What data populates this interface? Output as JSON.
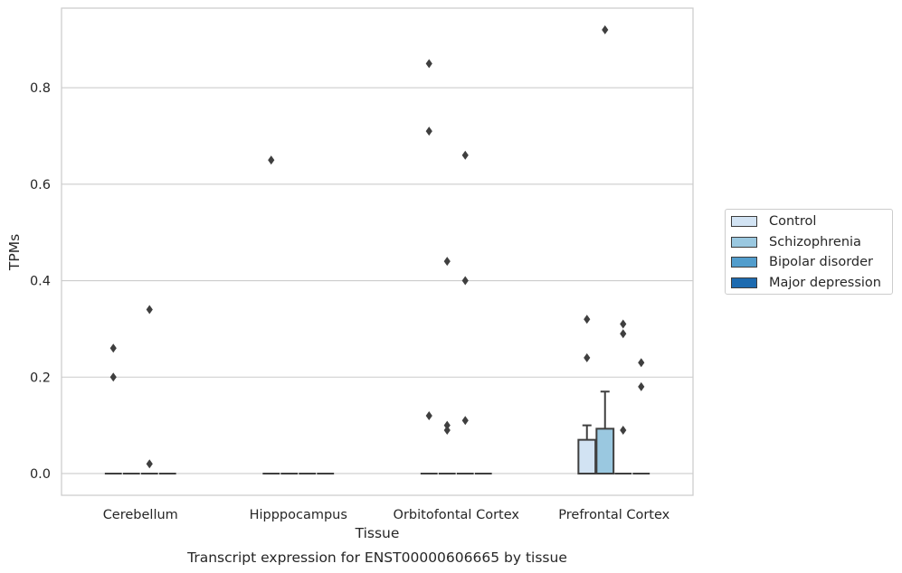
{
  "chart_data": {
    "type": "box",
    "title": "Transcript expression for ENST00000606665 by tissue",
    "xlabel": "Tissue",
    "ylabel": "TPMs",
    "ylim": [
      -0.045,
      0.965
    ],
    "yticks": [
      0.0,
      0.2,
      0.4,
      0.6,
      0.8
    ],
    "ytick_labels": [
      "0.0",
      "0.2",
      "0.4",
      "0.6",
      "0.8"
    ],
    "grid": true,
    "legend_position": "right",
    "categories": [
      "Cerebellum",
      "Hipppocampus",
      "Orbitofontal Cortex",
      "Prefrontal Cortex"
    ],
    "series": [
      {
        "name": "Control",
        "color": "#d2e3f3",
        "boxes": [
          {
            "q1": 0,
            "median": 0,
            "q3": 0,
            "whisker_low": 0,
            "whisker_high": 0,
            "outliers": [
              0.26,
              0.2
            ]
          },
          {
            "q1": 0,
            "median": 0,
            "q3": 0,
            "whisker_low": 0,
            "whisker_high": 0,
            "outliers": [
              0.65
            ]
          },
          {
            "q1": 0,
            "median": 0,
            "q3": 0,
            "whisker_low": 0,
            "whisker_high": 0,
            "outliers": [
              0.85,
              0.71,
              0.12
            ]
          },
          {
            "q1": 0,
            "median": 0,
            "q3": 0.07,
            "whisker_low": 0,
            "whisker_high": 0.1,
            "outliers": [
              0.32,
              0.24
            ]
          }
        ]
      },
      {
        "name": "Schizophrenia",
        "color": "#9ac8e0",
        "boxes": [
          {
            "q1": 0,
            "median": 0,
            "q3": 0,
            "whisker_low": 0,
            "whisker_high": 0,
            "outliers": []
          },
          {
            "q1": 0,
            "median": 0,
            "q3": 0,
            "whisker_low": 0,
            "whisker_high": 0,
            "outliers": []
          },
          {
            "q1": 0,
            "median": 0,
            "q3": 0,
            "whisker_low": 0,
            "whisker_high": 0,
            "outliers": [
              0.44,
              0.1,
              0.09
            ]
          },
          {
            "q1": 0,
            "median": 0,
            "q3": 0.093,
            "whisker_low": 0,
            "whisker_high": 0.17,
            "outliers": [
              0.92
            ]
          }
        ]
      },
      {
        "name": "Bipolar disorder",
        "color": "#529dcc",
        "boxes": [
          {
            "q1": 0,
            "median": 0,
            "q3": 0,
            "whisker_low": 0,
            "whisker_high": 0,
            "outliers": [
              0.34,
              0.02
            ]
          },
          {
            "q1": 0,
            "median": 0,
            "q3": 0,
            "whisker_low": 0,
            "whisker_high": 0,
            "outliers": []
          },
          {
            "q1": 0,
            "median": 0,
            "q3": 0,
            "whisker_low": 0,
            "whisker_high": 0,
            "outliers": [
              0.66,
              0.4,
              0.11
            ]
          },
          {
            "q1": 0,
            "median": 0,
            "q3": 0,
            "whisker_low": 0,
            "whisker_high": 0,
            "outliers": [
              0.31,
              0.29,
              0.09
            ]
          }
        ]
      },
      {
        "name": "Major depression",
        "color": "#1c6aaf",
        "boxes": [
          {
            "q1": 0,
            "median": 0,
            "q3": 0,
            "whisker_low": 0,
            "whisker_high": 0,
            "outliers": []
          },
          {
            "q1": 0,
            "median": 0,
            "q3": 0,
            "whisker_low": 0,
            "whisker_high": 0,
            "outliers": []
          },
          {
            "q1": 0,
            "median": 0,
            "q3": 0,
            "whisker_low": 0,
            "whisker_high": 0,
            "outliers": []
          },
          {
            "q1": 0,
            "median": 0,
            "q3": 0,
            "whisker_low": 0,
            "whisker_high": 0,
            "outliers": [
              0.23,
              0.18
            ]
          }
        ]
      }
    ]
  }
}
